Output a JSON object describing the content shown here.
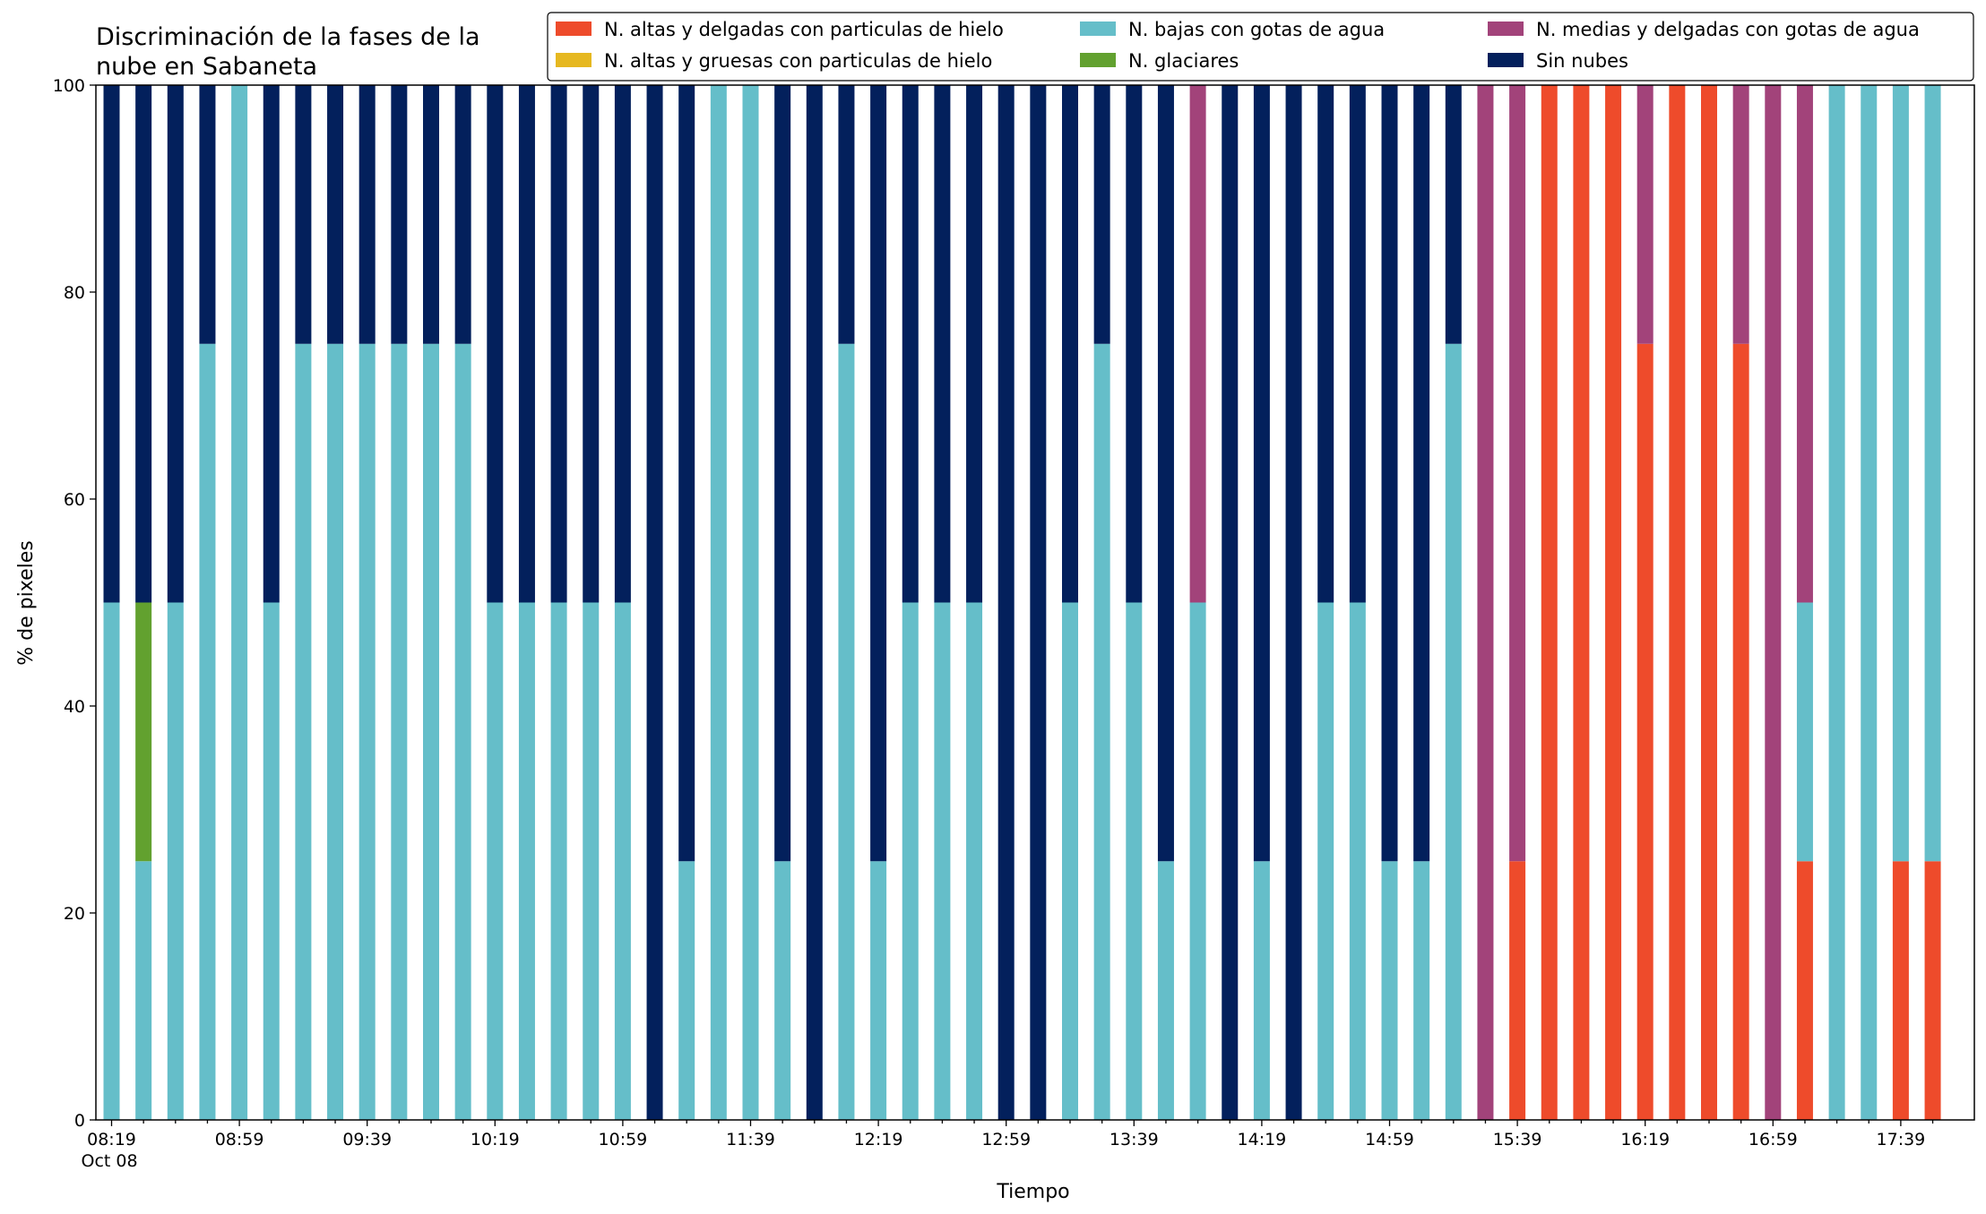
{
  "chart_data": {
    "type": "bar",
    "stacked": true,
    "title": "Discriminación de la fases de la nube en Sabaneta",
    "title_lines": [
      "Discriminación de la fases de la",
      "nube en Sabaneta"
    ],
    "xlabel": "Tiempo",
    "ylabel": "% de pixeles",
    "ylim": [
      0,
      100
    ],
    "yticks": [
      0,
      20,
      40,
      60,
      80,
      100
    ],
    "grid": false,
    "legend_position": "top-right",
    "x_date_label": "Oct 08",
    "x": [
      "08:19",
      "08:29",
      "08:39",
      "08:49",
      "08:59",
      "09:09",
      "09:19",
      "09:29",
      "09:39",
      "09:49",
      "09:59",
      "10:09",
      "10:19",
      "10:29",
      "10:39",
      "10:49",
      "10:59",
      "11:09",
      "11:19",
      "11:29",
      "11:39",
      "11:49",
      "11:59",
      "12:09",
      "12:19",
      "12:29",
      "12:39",
      "12:49",
      "12:59",
      "13:09",
      "13:19",
      "13:29",
      "13:39",
      "13:49",
      "13:59",
      "14:09",
      "14:19",
      "14:29",
      "14:39",
      "14:49",
      "14:59",
      "15:09",
      "15:19",
      "15:29",
      "15:39",
      "15:49",
      "15:59",
      "16:09",
      "16:19",
      "16:29",
      "16:39",
      "16:49",
      "16:59",
      "17:09",
      "17:19",
      "17:29",
      "17:39",
      "17:49"
    ],
    "labeled_ticks": [
      "08:19",
      "08:59",
      "09:39",
      "10:19",
      "10:59",
      "11:39",
      "12:19",
      "12:59",
      "13:39",
      "14:19",
      "14:59",
      "15:39",
      "16:19",
      "16:59",
      "17:39"
    ],
    "series": [
      {
        "name": "N. altas y delgadas con particulas de hielo",
        "color": "#ee4b2b",
        "values": [
          0,
          0,
          0,
          0,
          0,
          0,
          0,
          0,
          0,
          0,
          0,
          0,
          0,
          0,
          0,
          0,
          0,
          0,
          0,
          0,
          0,
          0,
          0,
          0,
          0,
          0,
          0,
          0,
          0,
          0,
          0,
          0,
          0,
          0,
          0,
          0,
          0,
          0,
          0,
          0,
          0,
          0,
          0,
          0,
          25,
          100,
          100,
          100,
          75,
          100,
          100,
          75,
          0,
          25,
          0,
          0,
          25,
          25
        ]
      },
      {
        "name": "N. altas y gruesas con particulas de hielo",
        "color": "#e6b820",
        "values": [
          0,
          0,
          0,
          0,
          0,
          0,
          0,
          0,
          0,
          0,
          0,
          0,
          0,
          0,
          0,
          0,
          0,
          0,
          0,
          0,
          0,
          0,
          0,
          0,
          0,
          0,
          0,
          0,
          0,
          0,
          0,
          0,
          0,
          0,
          0,
          0,
          0,
          0,
          0,
          0,
          0,
          0,
          0,
          0,
          0,
          0,
          0,
          0,
          0,
          0,
          0,
          0,
          0,
          0,
          0,
          0,
          0,
          0
        ]
      },
      {
        "name": "N. bajas con gotas de agua",
        "color": "#65bec9",
        "values": [
          50,
          25,
          50,
          75,
          100,
          50,
          75,
          75,
          75,
          75,
          75,
          75,
          50,
          50,
          50,
          50,
          50,
          0,
          25,
          100,
          100,
          25,
          0,
          75,
          25,
          50,
          50,
          50,
          0,
          0,
          50,
          75,
          50,
          25,
          50,
          0,
          25,
          0,
          50,
          50,
          25,
          25,
          75,
          0,
          0,
          0,
          0,
          0,
          0,
          0,
          0,
          0,
          0,
          25,
          100,
          100,
          75,
          75
        ]
      },
      {
        "name": "N. glaciares",
        "color": "#62a12f",
        "values": [
          0,
          25,
          0,
          0,
          0,
          0,
          0,
          0,
          0,
          0,
          0,
          0,
          0,
          0,
          0,
          0,
          0,
          0,
          0,
          0,
          0,
          0,
          0,
          0,
          0,
          0,
          0,
          0,
          0,
          0,
          0,
          0,
          0,
          0,
          0,
          0,
          0,
          0,
          0,
          0,
          0,
          0,
          0,
          0,
          0,
          0,
          0,
          0,
          0,
          0,
          0,
          0,
          0,
          0,
          0,
          0,
          0,
          0
        ]
      },
      {
        "name": "N. medias y delgadas con gotas de agua",
        "color": "#a2437a",
        "values": [
          0,
          0,
          0,
          0,
          0,
          0,
          0,
          0,
          0,
          0,
          0,
          0,
          0,
          0,
          0,
          0,
          0,
          0,
          0,
          0,
          0,
          0,
          0,
          0,
          0,
          0,
          0,
          0,
          0,
          0,
          0,
          0,
          0,
          0,
          50,
          0,
          0,
          0,
          0,
          0,
          0,
          0,
          0,
          100,
          75,
          0,
          0,
          0,
          25,
          0,
          0,
          25,
          100,
          50,
          0,
          0,
          0,
          0
        ]
      },
      {
        "name": "Sin nubes",
        "color": "#03205c",
        "values": [
          50,
          50,
          50,
          25,
          0,
          50,
          25,
          25,
          25,
          25,
          25,
          25,
          50,
          50,
          50,
          50,
          50,
          100,
          75,
          0,
          0,
          75,
          100,
          25,
          75,
          50,
          50,
          50,
          100,
          100,
          50,
          25,
          50,
          75,
          0,
          100,
          75,
          100,
          50,
          50,
          75,
          75,
          25,
          0,
          0,
          0,
          0,
          0,
          0,
          0,
          0,
          0,
          0,
          0,
          0,
          0,
          0,
          0
        ]
      }
    ]
  }
}
